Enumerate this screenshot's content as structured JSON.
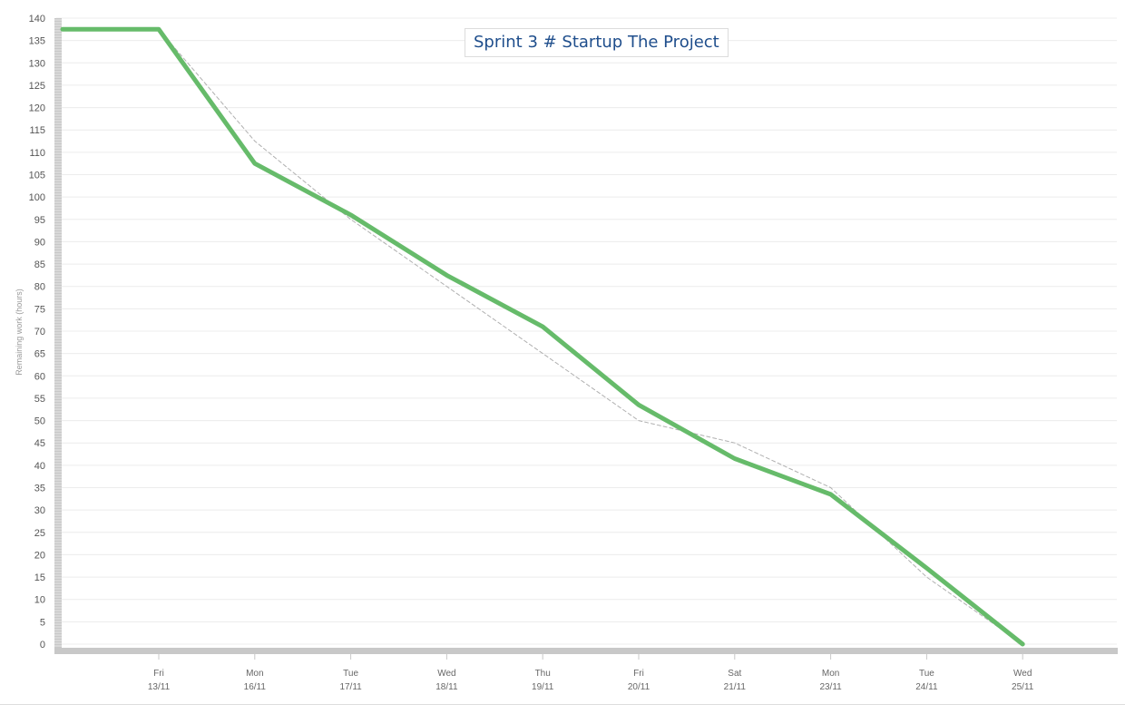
{
  "chart_data": {
    "type": "line",
    "title": "Sprint 3 # Startup The Project",
    "ylabel": "Remaining work (hours)",
    "xlabel": "",
    "ylim": [
      0,
      140
    ],
    "yticks": [
      0,
      5,
      10,
      15,
      20,
      25,
      30,
      35,
      40,
      45,
      50,
      55,
      60,
      65,
      70,
      75,
      80,
      85,
      90,
      95,
      100,
      105,
      110,
      115,
      120,
      125,
      130,
      135,
      140
    ],
    "categories": [
      {
        "day": "Fri",
        "date": "13/11"
      },
      {
        "day": "Mon",
        "date": "16/11"
      },
      {
        "day": "Tue",
        "date": "17/11"
      },
      {
        "day": "Wed",
        "date": "18/11"
      },
      {
        "day": "Thu",
        "date": "19/11"
      },
      {
        "day": "Fri",
        "date": "20/11"
      },
      {
        "day": "Sat",
        "date": "21/11"
      },
      {
        "day": "Mon",
        "date": "23/11"
      },
      {
        "day": "Tue",
        "date": "24/11"
      },
      {
        "day": "Wed",
        "date": "25/11"
      }
    ],
    "grid": true,
    "series": [
      {
        "key": "actual",
        "style": "solid",
        "color": "#66bb6a",
        "start_value": 137.5,
        "values": [
          137.5,
          107.5,
          96,
          82.5,
          71,
          53.5,
          41.5,
          33.5,
          17,
          0
        ]
      },
      {
        "key": "ideal",
        "style": "dashed",
        "color": "#b0b0b0",
        "values": [
          137.5,
          112.5,
          95,
          80,
          65,
          50,
          45,
          35,
          15,
          0
        ]
      }
    ]
  }
}
